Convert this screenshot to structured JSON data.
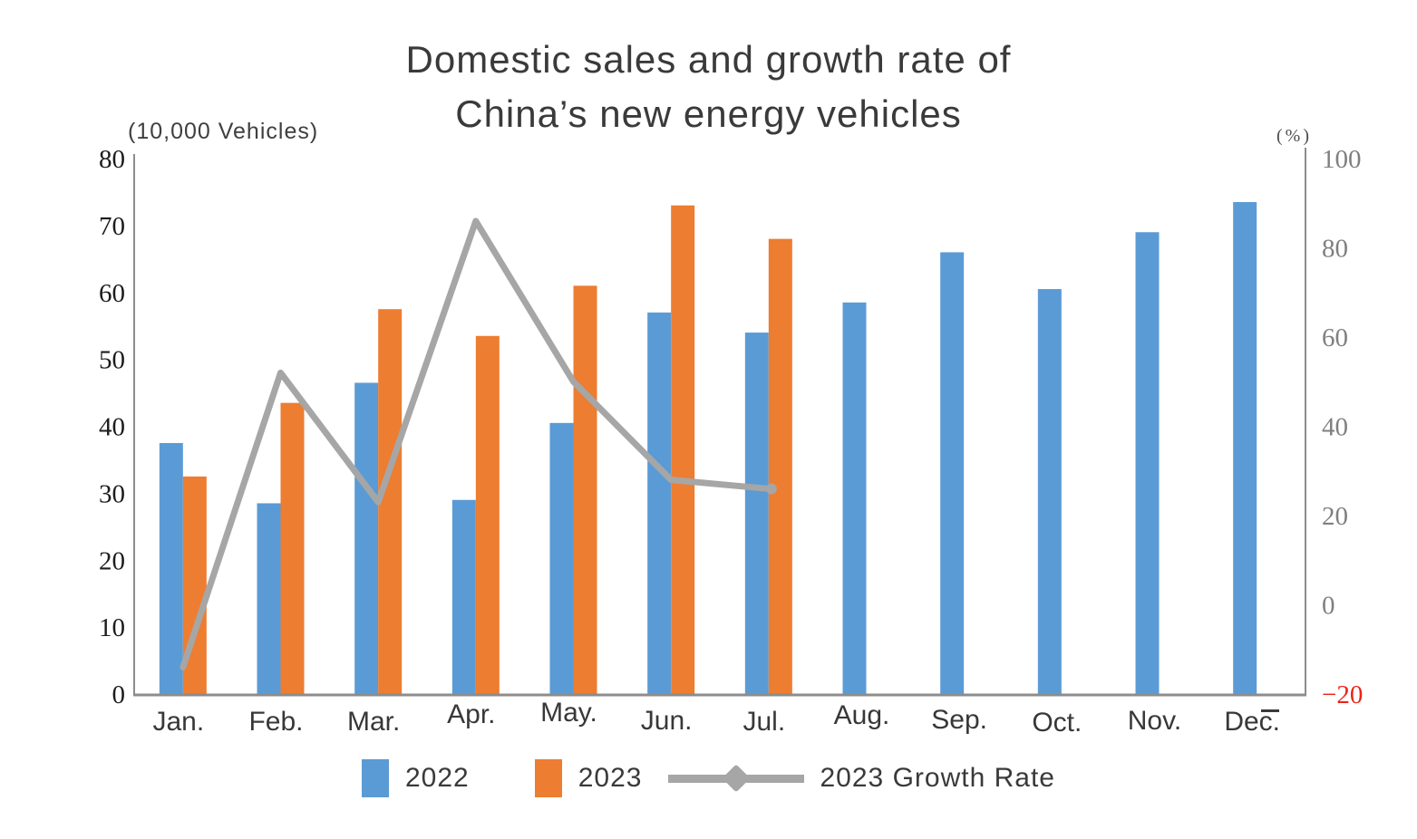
{
  "title": {
    "line1": "Domestic sales and growth rate of",
    "line2": "China’s new energy vehicles"
  },
  "axes": {
    "left_unit": "(10,000 Vehicles)",
    "right_unit": "(%)"
  },
  "legend": {
    "items": [
      {
        "label": "2022",
        "swatch_color": "#5b9bd5",
        "marker": "square"
      },
      {
        "label": "2023",
        "swatch_color": "#ed7d31",
        "marker": "square"
      },
      {
        "label": "2023 Growth Rate",
        "swatch_color": "#a6a6a6",
        "marker": "line-diamond"
      }
    ]
  },
  "colors": {
    "bar_2022": "#5b9bd5",
    "bar_2023": "#ed7d31",
    "growth_line": "#a6a6a6",
    "axis_line": "#8c8c8c",
    "left_tick_text": "#1c1c1c",
    "right_tick_text": "#7f7f7f",
    "negative_tick_text": "#ef2318",
    "month_text": "#383838"
  },
  "chart_data": {
    "type": "bar+line",
    "title": "Domestic sales and growth rate of China’s new energy vehicles",
    "categories": [
      "Jan.",
      "Feb.",
      "Mar.",
      "Apr.",
      "May.",
      "Jun.",
      "Jul.",
      "Aug.",
      "Sep.",
      "Oct.",
      "Nov.",
      "Dec."
    ],
    "series": [
      {
        "name": "2022",
        "type": "bar",
        "axis": "left",
        "color": "#5b9bd5",
        "values": [
          37.5,
          28.5,
          46.5,
          29,
          40.5,
          57,
          54,
          58.5,
          66,
          60.5,
          69,
          73.5
        ]
      },
      {
        "name": "2023",
        "type": "bar",
        "axis": "left",
        "color": "#ed7d31",
        "values": [
          32.5,
          43.5,
          57.5,
          53.5,
          61,
          73,
          68
        ]
      },
      {
        "name": "2023 Growth Rate",
        "type": "line",
        "axis": "right",
        "color": "#a6a6a6",
        "values": [
          -14,
          52,
          23,
          86,
          50,
          28,
          26
        ]
      }
    ],
    "left_axis": {
      "unit": "(10,000 Vehicles)",
      "min": 0,
      "max": 80,
      "ticks": [
        0,
        10,
        20,
        30,
        40,
        50,
        60,
        70,
        80
      ]
    },
    "right_axis": {
      "unit": "(%)",
      "min": -20,
      "max": 100,
      "ticks": [
        -20,
        0,
        20,
        40,
        60,
        80,
        100
      ]
    },
    "grid": false,
    "legend_position": "bottom"
  }
}
